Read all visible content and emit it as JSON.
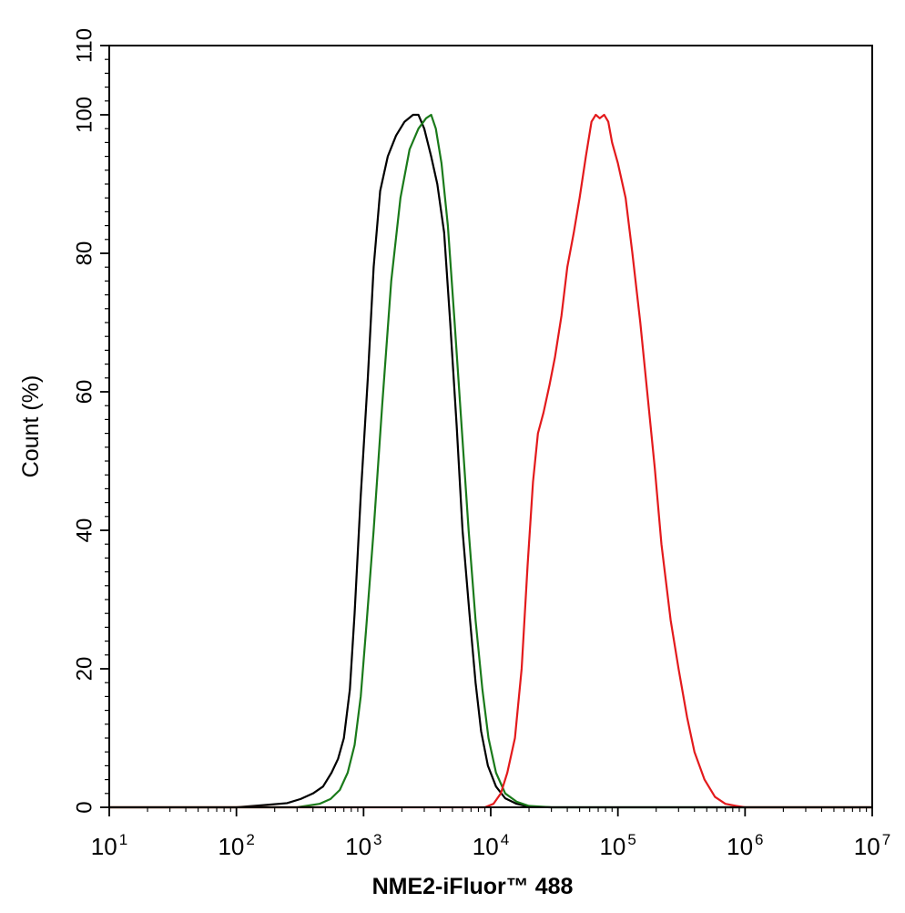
{
  "chart_data": {
    "type": "line",
    "xlabel": "NME2-iFluor™ 488",
    "ylabel": "Count  (%)",
    "x_scale": "log",
    "xlim": [
      10,
      10000000
    ],
    "ylim": [
      0,
      110
    ],
    "grid": false,
    "x_ticks": [
      {
        "base": "10",
        "exp": "1",
        "value": 10
      },
      {
        "base": "10",
        "exp": "2",
        "value": 100
      },
      {
        "base": "10",
        "exp": "3",
        "value": 1000
      },
      {
        "base": "10",
        "exp": "4",
        "value": 10000
      },
      {
        "base": "10",
        "exp": "5",
        "value": 100000
      },
      {
        "base": "10",
        "exp": "6",
        "value": 1000000
      },
      {
        "base": "10",
        "exp": "7",
        "value": 10000000
      }
    ],
    "y_ticks": [
      {
        "label": "0",
        "value": 0
      },
      {
        "label": "20",
        "value": 20
      },
      {
        "label": "40",
        "value": 40
      },
      {
        "label": "60",
        "value": 60
      },
      {
        "label": "80",
        "value": 80
      },
      {
        "label": "100",
        "value": 100
      },
      {
        "label": "110",
        "value": 110
      }
    ],
    "series": [
      {
        "color": "#000000",
        "points": [
          [
            10,
            0
          ],
          [
            100,
            0
          ],
          [
            160,
            0.3
          ],
          [
            250,
            0.6
          ],
          [
            320,
            1.2
          ],
          [
            400,
            2
          ],
          [
            480,
            3
          ],
          [
            560,
            5
          ],
          [
            630,
            7
          ],
          [
            700,
            10
          ],
          [
            780,
            17
          ],
          [
            850,
            28
          ],
          [
            950,
            45
          ],
          [
            1080,
            62
          ],
          [
            1200,
            78
          ],
          [
            1350,
            89
          ],
          [
            1550,
            94
          ],
          [
            1800,
            97
          ],
          [
            2100,
            99
          ],
          [
            2450,
            100
          ],
          [
            2700,
            100
          ],
          [
            3000,
            98
          ],
          [
            3400,
            94
          ],
          [
            3800,
            90
          ],
          [
            4300,
            83
          ],
          [
            4800,
            70
          ],
          [
            5400,
            55
          ],
          [
            6000,
            40
          ],
          [
            6800,
            28
          ],
          [
            7600,
            18
          ],
          [
            8400,
            11
          ],
          [
            9500,
            6
          ],
          [
            11000,
            3
          ],
          [
            13000,
            1.3
          ],
          [
            16000,
            0.5
          ],
          [
            20000,
            0.1
          ],
          [
            30000,
            0
          ],
          [
            10000000,
            0
          ]
        ]
      },
      {
        "color": "#1a7a1a",
        "points": [
          [
            10,
            0
          ],
          [
            300,
            0
          ],
          [
            450,
            0.5
          ],
          [
            550,
            1.2
          ],
          [
            650,
            2.5
          ],
          [
            750,
            5
          ],
          [
            850,
            9
          ],
          [
            950,
            16
          ],
          [
            1050,
            26
          ],
          [
            1200,
            40
          ],
          [
            1400,
            58
          ],
          [
            1650,
            76
          ],
          [
            1950,
            88
          ],
          [
            2300,
            95
          ],
          [
            2700,
            98
          ],
          [
            3100,
            99.5
          ],
          [
            3400,
            100
          ],
          [
            3700,
            98
          ],
          [
            4100,
            93
          ],
          [
            4600,
            84
          ],
          [
            5200,
            70
          ],
          [
            5900,
            55
          ],
          [
            6700,
            40
          ],
          [
            7600,
            27
          ],
          [
            8600,
            17
          ],
          [
            9600,
            10
          ],
          [
            11000,
            5
          ],
          [
            13000,
            2
          ],
          [
            16000,
            0.8
          ],
          [
            20000,
            0.2
          ],
          [
            30000,
            0
          ],
          [
            10000000,
            0
          ]
        ]
      },
      {
        "color": "#e31a1c",
        "points": [
          [
            10,
            0
          ],
          [
            9000,
            0
          ],
          [
            10500,
            0.5
          ],
          [
            12000,
            2
          ],
          [
            13500,
            5
          ],
          [
            15500,
            10
          ],
          [
            17500,
            20
          ],
          [
            19500,
            35
          ],
          [
            21500,
            47
          ],
          [
            23500,
            54
          ],
          [
            26000,
            57
          ],
          [
            29000,
            61
          ],
          [
            32000,
            65
          ],
          [
            36000,
            71
          ],
          [
            40000,
            78
          ],
          [
            45000,
            83
          ],
          [
            50000,
            88
          ],
          [
            56000,
            94
          ],
          [
            62000,
            99
          ],
          [
            67000,
            100
          ],
          [
            72000,
            99.5
          ],
          [
            78000,
            100
          ],
          [
            84000,
            99
          ],
          [
            90000,
            96
          ],
          [
            100000,
            93
          ],
          [
            115000,
            88
          ],
          [
            130000,
            80
          ],
          [
            150000,
            70
          ],
          [
            170000,
            60
          ],
          [
            195000,
            49
          ],
          [
            220000,
            38
          ],
          [
            260000,
            27
          ],
          [
            300000,
            20
          ],
          [
            350000,
            13
          ],
          [
            400000,
            8
          ],
          [
            480000,
            4
          ],
          [
            580000,
            1.5
          ],
          [
            700000,
            0.5
          ],
          [
            850000,
            0.2
          ],
          [
            1000000,
            0
          ],
          [
            10000000,
            0
          ]
        ]
      }
    ]
  }
}
